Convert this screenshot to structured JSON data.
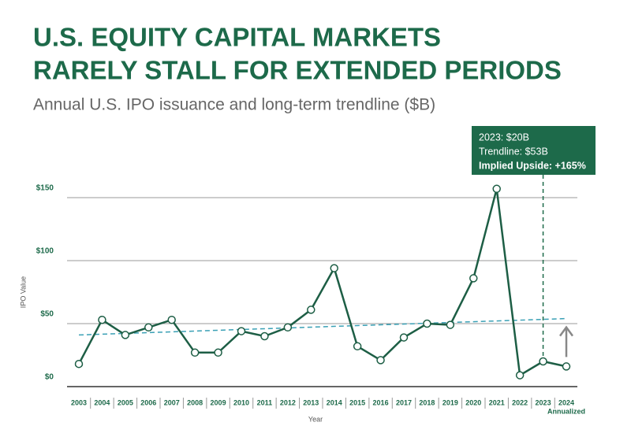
{
  "chart_data": {
    "type": "line",
    "title": [
      "U.S. EQUITY CAPITAL MARKETS",
      "RARELY STALL FOR EXTENDED PERIODS"
    ],
    "subtitle": "Annual U.S. IPO issuance and long-term trendline ($B)",
    "y_label": "IPO Value",
    "x_label": "Year",
    "categories": [
      "2003",
      "2004",
      "2005",
      "2006",
      "2007",
      "2008",
      "2009",
      "2010",
      "2011",
      "2012",
      "2013",
      "2014",
      "2015",
      "2016",
      "2017",
      "2018",
      "2019",
      "2020",
      "2021",
      "2022",
      "2023",
      "2024"
    ],
    "last_category_note": "Annualized",
    "series": [
      {
        "color": "#1d5e45",
        "values": [
          18,
          53,
          41,
          47,
          53,
          27,
          27,
          44,
          40,
          47,
          61,
          94,
          32,
          21,
          39,
          50,
          49,
          86,
          157,
          9,
          20,
          16
        ]
      }
    ],
    "trendline": {
      "color": "#3aa0b5",
      "categories": [
        "2003",
        "2024"
      ],
      "values": [
        41,
        54
      ]
    },
    "ylim": [
      0,
      160
    ],
    "yticks": [
      {
        "value": 0,
        "label": "$0"
      },
      {
        "value": 50,
        "label": "$50"
      },
      {
        "value": 100,
        "label": "$100"
      },
      {
        "value": 150,
        "label": "$150"
      }
    ],
    "grid": true,
    "annotation": {
      "category": "2023",
      "lines": [
        "2023: $20B",
        "Trendline: $53B",
        "Implied Upside: +165%"
      ]
    }
  }
}
